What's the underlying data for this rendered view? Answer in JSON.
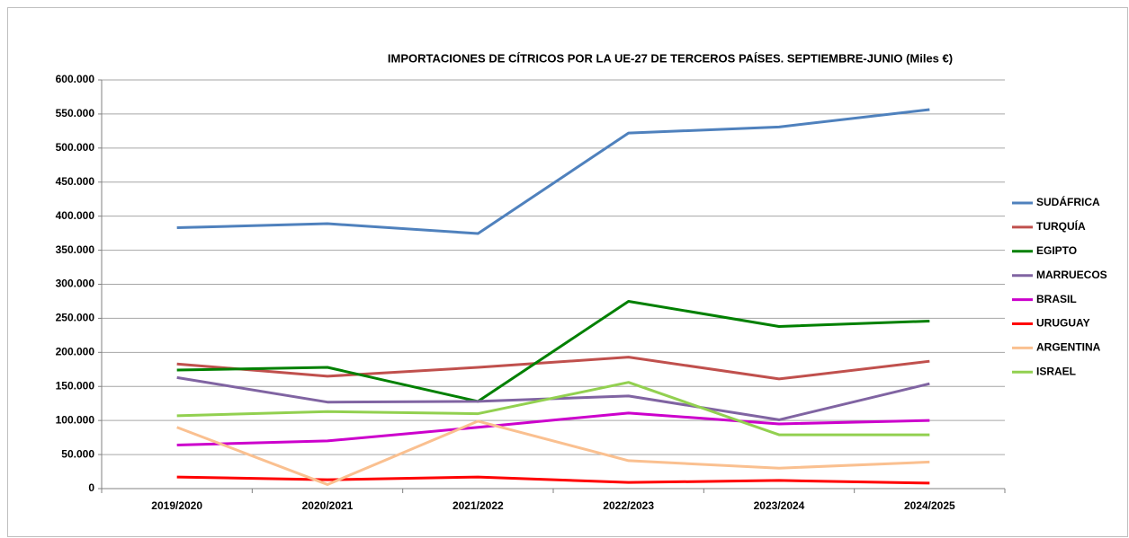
{
  "chart_data": {
    "type": "line",
    "title": "IMPORTACIONES DE CÍTRICOS POR LA UE-27 DE TERCEROS PAÍSES. SEPTIEMBRE-JUNIO   (Miles €)",
    "categories": [
      "2019/2020",
      "2020/2021",
      "2021/2022",
      "2022/2023",
      "2023/2024",
      "2024/2025"
    ],
    "series": [
      {
        "name": "SUDÁFRICA",
        "color": "#4f81bd",
        "values": [
          383000,
          389000,
          374500,
          522000,
          531000,
          556500
        ]
      },
      {
        "name": "TURQUÍA",
        "color": "#c0504d",
        "values": [
          183000,
          165000,
          178000,
          193000,
          161000,
          187000
        ]
      },
      {
        "name": "EGIPTO",
        "color": "#008000",
        "values": [
          174000,
          178000,
          128000,
          275000,
          238000,
          246000
        ]
      },
      {
        "name": "MARRUECOS",
        "color": "#8064a2",
        "values": [
          163000,
          127000,
          128000,
          136000,
          101000,
          154000
        ]
      },
      {
        "name": "BRASIL",
        "color": "#cc00cc",
        "values": [
          64000,
          70000,
          90000,
          111000,
          95000,
          100000
        ]
      },
      {
        "name": "URUGUAY",
        "color": "#ff0000",
        "values": [
          17000,
          13000,
          17000,
          9000,
          12000,
          8000
        ]
      },
      {
        "name": "ARGENTINA",
        "color": "#fac090",
        "values": [
          90000,
          6000,
          99000,
          41000,
          30000,
          39000
        ]
      },
      {
        "name": "ISRAEL",
        "color": "#92d050",
        "values": [
          107000,
          113000,
          110000,
          156000,
          79000,
          79000
        ]
      }
    ],
    "ylim": [
      0,
      600000
    ],
    "yticks": [
      0,
      {
        "value": 50000,
        "label": "50.000"
      },
      {
        "value": 100000,
        "label": "100.000"
      },
      {
        "value": 150000,
        "label": "150.000"
      },
      {
        "value": 200000,
        "label": "200.000"
      },
      {
        "value": 250000,
        "label": "250.000"
      },
      {
        "value": 300000,
        "label": "300.000"
      },
      {
        "value": 350000,
        "label": "350.000"
      },
      {
        "value": 400000,
        "label": "400.000"
      },
      {
        "value": 450000,
        "label": "450.000"
      },
      {
        "value": 500000,
        "label": "500.000"
      },
      {
        "value": 550000,
        "label": "550.000"
      },
      {
        "value": 600000,
        "label": "600.000"
      }
    ],
    "grid": true,
    "legend": "right"
  }
}
